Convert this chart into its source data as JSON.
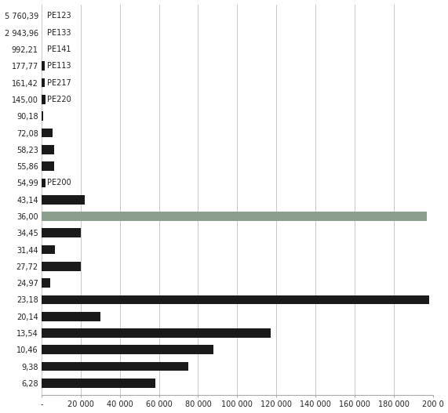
{
  "labels_top_to_bottom": [
    "5 760,39",
    "2 943,96",
    "992,21",
    "177,77",
    "161,42",
    "145,00",
    "90,18",
    "72,08",
    "58,23",
    "55,86",
    "54,99",
    "43,14",
    "36,00",
    "34,45",
    "31,44",
    "27,72",
    "24,97",
    "23,18",
    "20,14",
    "13,54",
    "10,46",
    "9,38",
    "6,28"
  ],
  "annotations": {
    "5 760,39": "PE123",
    "2 943,96": "PE133",
    "992,21": "PE141",
    "177,77": "PE113",
    "161,42": "PE217",
    "145,00": "PE220",
    "54,99": "PE200"
  },
  "values_map": {
    "5 760,39": 0,
    "2 943,96": 0,
    "992,21": 0,
    "177,77": 1500,
    "161,42": 1500,
    "145,00": 2000,
    "90,18": 1000,
    "72,08": 5500,
    "58,23": 6500,
    "55,86": 6500,
    "54,99": 2000,
    "43,14": 22000,
    "36,00": 197000,
    "34,45": 20000,
    "31,44": 7000,
    "27,72": 20000,
    "24,97": 4500,
    "23,18": 198000,
    "20,14": 30000,
    "13,54": 117000,
    "10,46": 88000,
    "9,38": 75000,
    "6,28": 58000
  },
  "colors_map": {
    "36,00": "#8c9e8c"
  },
  "default_color": "#1a1a1a",
  "xlim": [
    0,
    200000
  ],
  "xticks": [
    0,
    20000,
    40000,
    60000,
    80000,
    100000,
    120000,
    140000,
    160000,
    180000,
    200000
  ],
  "xtick_labels": [
    "-",
    "20 000",
    "40 000",
    "60 000",
    "80 000",
    "100 000",
    "120 000",
    "140 000",
    "160 000",
    "180 000",
    "200 0"
  ],
  "background_color": "#ffffff",
  "grid_color": "#c8c8c8",
  "bar_height": 0.55,
  "figsize": [
    5.71,
    5.27
  ],
  "dpi": 100
}
